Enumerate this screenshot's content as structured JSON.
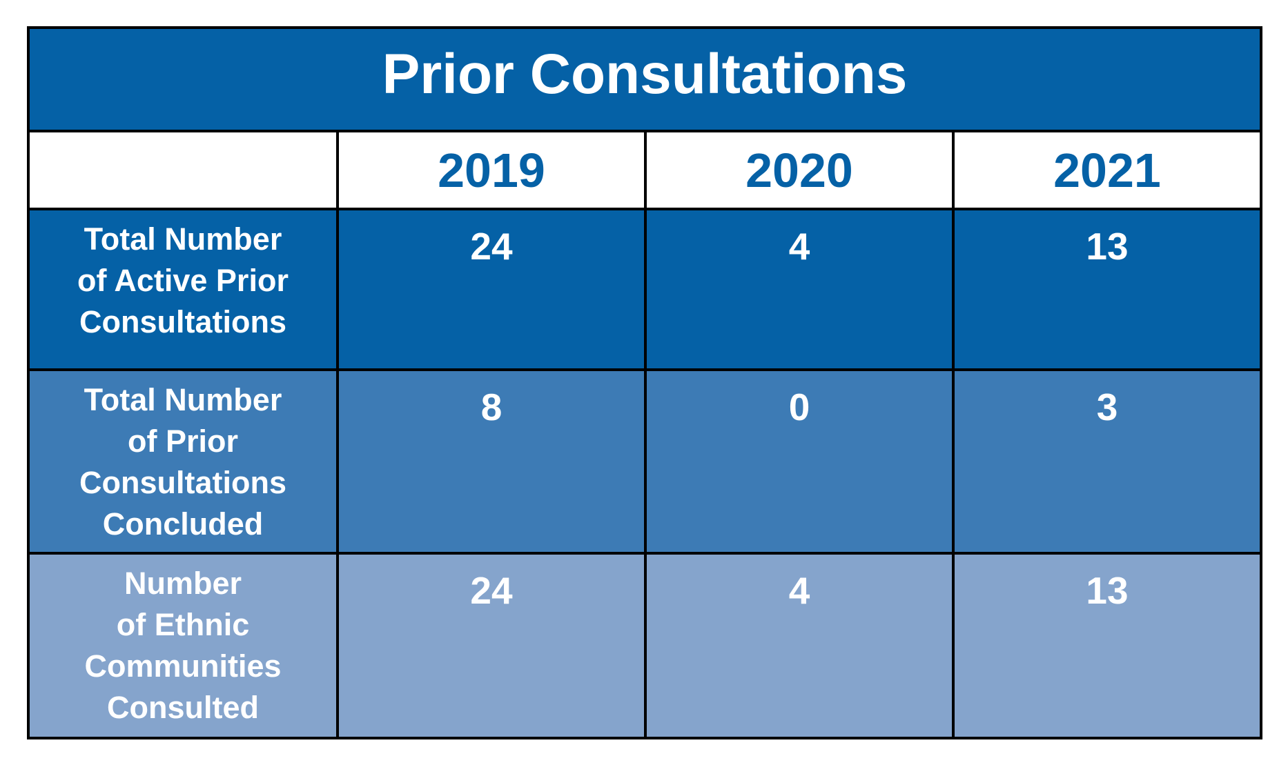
{
  "chart_data": {
    "type": "table",
    "title": "Prior Consultations",
    "columns": [
      "",
      "2019",
      "2020",
      "2021"
    ],
    "rows": [
      {
        "label": "Total Number\nof Active Prior\nConsultations",
        "values": [
          "24",
          "4",
          "13"
        ]
      },
      {
        "label": "Total Number\nof Prior\nConsultations\nConcluded",
        "values": [
          "8",
          "0",
          "3"
        ]
      },
      {
        "label": "Number\nof Ethnic\nCommunities\nConsulted",
        "values": [
          "24",
          "4",
          "13"
        ]
      }
    ]
  },
  "colors": {
    "title_background": "#0561a6",
    "header_text": "#0561a6",
    "row_backgrounds": [
      "#0561a6",
      "#3d7bb5",
      "#85a4cc"
    ],
    "border": "#000000"
  }
}
